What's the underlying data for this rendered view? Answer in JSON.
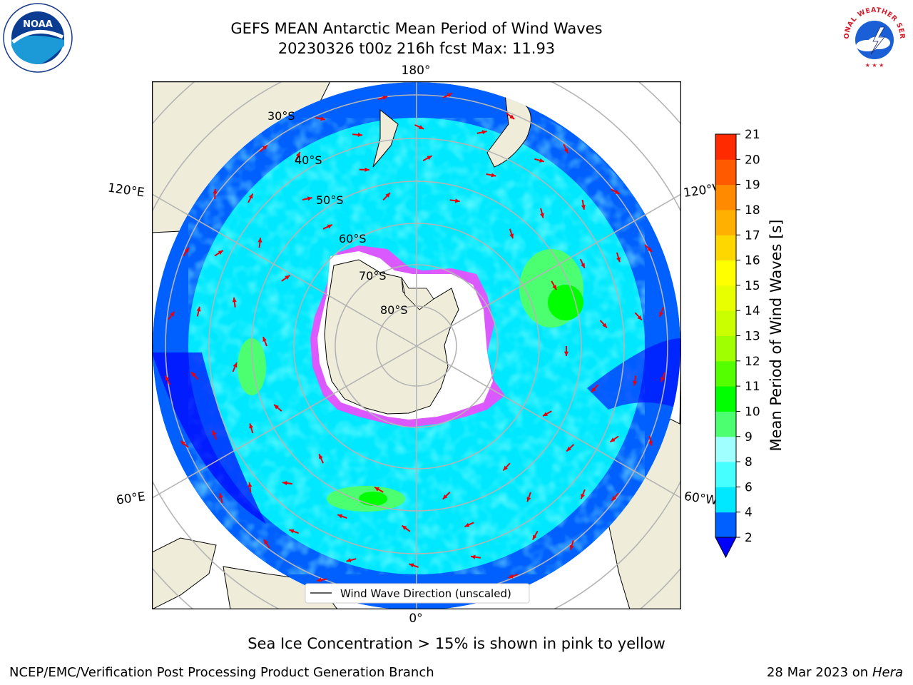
{
  "header": {
    "title_line1": "GEFS MEAN Antarctic Mean Period of Wind Waves",
    "title_line2": "20230326 t00z 216h fcst   Max: 11.93"
  },
  "logos": {
    "left": "noaa-logo",
    "right": "national-weather-service-logo",
    "left_text": "NOAA",
    "right_text": "NATIONAL WEATHER SERVICE"
  },
  "map": {
    "projection": "south-polar-stereographic",
    "lat_labels": [
      "30°S",
      "40°S",
      "50°S",
      "60°S",
      "70°S",
      "80°S"
    ],
    "lon_labels": {
      "top": "180°",
      "upper_left": "120°E",
      "upper_right": "120°W",
      "lower_left": "60°E",
      "lower_right": "60°W",
      "bottom": "0°"
    },
    "legend_label": "Wind Wave Direction (unscaled)",
    "colors": {
      "land": "#efedda",
      "ocean_low": "#0060ff",
      "ocean_mid": "#00e8ff",
      "ocean_high": "#4cff70",
      "sea_ice": "#ff40ff",
      "arrow": "#e8000b",
      "grid": "#b4b4b4"
    }
  },
  "colorbar": {
    "label": "Mean Period of Wind Waves [s]",
    "ticks": [
      "2",
      "4",
      "6",
      "8",
      "9",
      "10",
      "11",
      "12",
      "13",
      "14",
      "15",
      "16",
      "17",
      "18",
      "19",
      "20",
      "21"
    ],
    "colors": [
      "#0060ff",
      "#00e8ff",
      "#46ffff",
      "#a0ffff",
      "#4cff70",
      "#00ff00",
      "#54ff00",
      "#a0ff00",
      "#caff00",
      "#e8ff00",
      "#ffff00",
      "#ffd700",
      "#ffb000",
      "#ff8a00",
      "#ff5a00",
      "#ff2a00",
      "#ff0000"
    ],
    "extend_color": "#0000ff"
  },
  "notes": {
    "ice_note": "Sea Ice Concentration > 15% is shown in pink to yellow"
  },
  "footer": {
    "left": "NCEP/EMC/Verification Post Processing Product Generation Branch",
    "right_date": "28 Mar 2023 on",
    "right_host": "Hera"
  }
}
